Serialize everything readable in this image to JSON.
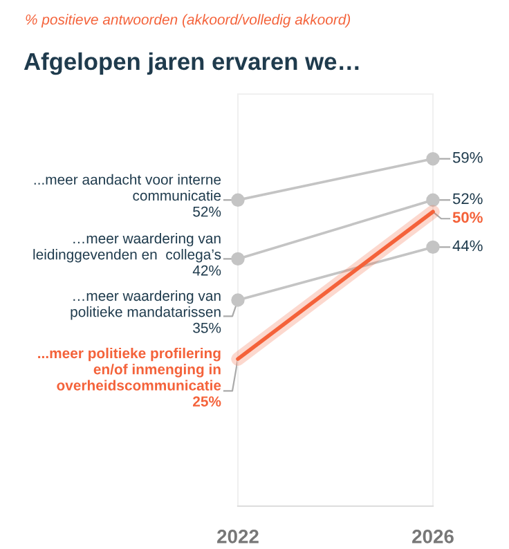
{
  "chart_data": {
    "type": "line",
    "subtitle": "% positieve antwoorden (akkoord/volledig akkoord)",
    "title": "Afgelopen jaren ervaren we…",
    "categories": [
      "2022",
      "2026"
    ],
    "series": [
      {
        "name": "...meer aandacht voor interne\ncommunicatie",
        "color": "#c4c4c4",
        "values": [
          52,
          59
        ],
        "value_labels": [
          "52%",
          "59%"
        ]
      },
      {
        "name": "…meer waardering van\nleidinggevenden en  collega’s",
        "color": "#c4c4c4",
        "values": [
          42,
          52
        ],
        "value_labels": [
          "42%",
          "52%"
        ]
      },
      {
        "name": "…meer waardering van\npolitieke mandatarissen",
        "color": "#c4c4c4",
        "values": [
          35,
          44
        ],
        "value_labels": [
          "35%",
          "44%"
        ]
      },
      {
        "name": "...meer politieke profilering\nen/of inmenging in\noverheidscommunicatie",
        "color": "#f4623a",
        "values": [
          25,
          50
        ],
        "value_labels": [
          "25%",
          "50%"
        ],
        "marker": "none"
      }
    ],
    "ylim": [
      0,
      70
    ],
    "tick_labels": "x",
    "legend": false,
    "marker": "circle",
    "line_style": "solid"
  }
}
